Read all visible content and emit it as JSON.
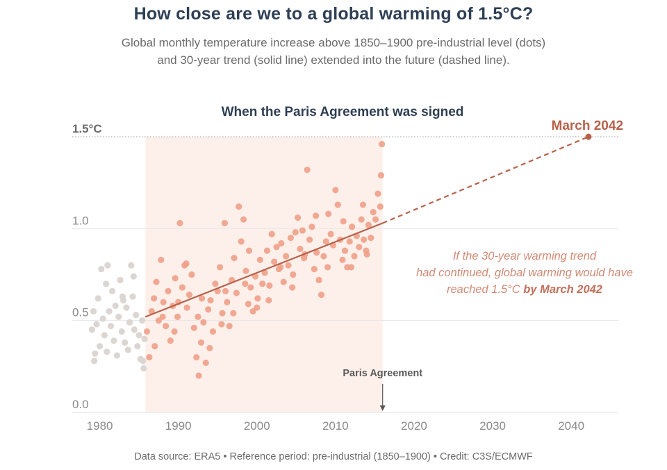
{
  "title": "How close are we to a global warming of 1.5°C?",
  "subtitle": {
    "line1": "Global monthly temperature increase above 1850–1900 pre-industrial level (dots)",
    "line2": "and 30-year trend (solid line) extended into the future (dashed line)."
  },
  "footer": "Data source: ERA5 • Reference period: pre-industrial (1850–1900) • Credit: C3S/ECMWF",
  "colors": {
    "title": "#2e3f55",
    "early_dots": "#dcd6d3",
    "trend_dots": "#f0a08a",
    "trend_line": "#b8614a",
    "highlight_band": "#fdf0ea",
    "annotation": "#d08a74"
  },
  "chart_data": {
    "type": "scatter",
    "x_ticks": [
      "1980",
      "1990",
      "2000",
      "2010",
      "2020",
      "2030",
      "2040"
    ],
    "y_ticks": [
      "0.0",
      "0.5",
      "1.0",
      "1.5°C"
    ],
    "xlim": [
      1976.5,
      2046
    ],
    "ylim": [
      0,
      1.5
    ],
    "grid": true,
    "highlight": {
      "from": 1985.8,
      "to": 2016.0,
      "label": "When the Paris Agreement was signed"
    },
    "event": {
      "x": 2016.0,
      "label": "Paris Agreement"
    },
    "trend": {
      "start": [
        1985.8,
        0.52
      ],
      "end": [
        2016.0,
        1.03
      ],
      "extension_end": [
        2042.2,
        1.5
      ],
      "target_label": "March 2042"
    },
    "annotation": {
      "line1": "If the 30-year warming trend",
      "line2": "had continued, global warming would have",
      "line3_prefix": "reached 1.5°C ",
      "line3_bold": "by March 2042"
    },
    "series": [
      {
        "period": "1979-1985",
        "points": [
          [
            1979.0,
            0.45
          ],
          [
            1979.2,
            0.55
          ],
          [
            1979.4,
            0.32
          ],
          [
            1979.6,
            0.48
          ],
          [
            1979.8,
            0.62
          ],
          [
            1980.0,
            0.36
          ],
          [
            1980.2,
            0.78
          ],
          [
            1980.4,
            0.51
          ],
          [
            1980.6,
            0.42
          ],
          [
            1980.8,
            0.7
          ],
          [
            1981.0,
            0.8
          ],
          [
            1981.2,
            0.55
          ],
          [
            1981.4,
            0.47
          ],
          [
            1981.6,
            0.66
          ],
          [
            1981.8,
            0.39
          ],
          [
            1982.0,
            0.58
          ],
          [
            1982.2,
            0.31
          ],
          [
            1982.4,
            0.52
          ],
          [
            1982.6,
            0.72
          ],
          [
            1982.8,
            0.44
          ],
          [
            1983.0,
            0.61
          ],
          [
            1983.2,
            0.38
          ],
          [
            1983.4,
            0.57
          ],
          [
            1983.6,
            0.34
          ],
          [
            1983.8,
            0.49
          ],
          [
            1984.0,
            0.8
          ],
          [
            1984.2,
            0.63
          ],
          [
            1984.4,
            0.45
          ],
          [
            1984.6,
            0.53
          ],
          [
            1984.8,
            0.36
          ],
          [
            1985.0,
            0.42
          ],
          [
            1985.2,
            0.29
          ],
          [
            1985.4,
            0.5
          ],
          [
            1985.6,
            0.24
          ],
          [
            1985.7,
            0.4
          ],
          [
            1979.3,
            0.28
          ],
          [
            1980.9,
            0.33
          ],
          [
            1982.9,
            0.63
          ],
          [
            1984.3,
            0.74
          ],
          [
            1985.5,
            0.28
          ]
        ]
      },
      {
        "period": "1986-2016",
        "points": [
          [
            1986.0,
            0.44
          ],
          [
            1986.3,
            0.3
          ],
          [
            1986.6,
            0.55
          ],
          [
            1986.9,
            0.62
          ],
          [
            1987.2,
            0.71
          ],
          [
            1987.5,
            0.5
          ],
          [
            1987.8,
            0.83
          ],
          [
            1988.1,
            0.6
          ],
          [
            1988.4,
            0.47
          ],
          [
            1988.7,
            0.66
          ],
          [
            1989.0,
            0.39
          ],
          [
            1989.3,
            0.58
          ],
          [
            1989.6,
            0.73
          ],
          [
            1989.9,
            0.52
          ],
          [
            1990.2,
            1.03
          ],
          [
            1990.5,
            0.68
          ],
          [
            1990.8,
            0.8
          ],
          [
            1991.1,
            0.57
          ],
          [
            1991.4,
            0.64
          ],
          [
            1991.7,
            0.75
          ],
          [
            1992.0,
            0.46
          ],
          [
            1992.3,
            0.3
          ],
          [
            1992.6,
            0.2
          ],
          [
            1992.9,
            0.38
          ],
          [
            1993.2,
            0.49
          ],
          [
            1993.5,
            0.27
          ],
          [
            1993.8,
            0.56
          ],
          [
            1994.1,
            0.61
          ],
          [
            1994.4,
            0.44
          ],
          [
            1994.7,
            0.7
          ],
          [
            1995.0,
            0.66
          ],
          [
            1995.3,
            0.79
          ],
          [
            1995.6,
            0.54
          ],
          [
            1995.9,
            1.03
          ],
          [
            1996.2,
            0.6
          ],
          [
            1996.5,
            0.47
          ],
          [
            1996.8,
            0.72
          ],
          [
            1997.1,
            0.84
          ],
          [
            1997.4,
            0.65
          ],
          [
            1997.7,
            1.12
          ],
          [
            1998.0,
            0.93
          ],
          [
            1998.3,
            1.05
          ],
          [
            1998.6,
            0.77
          ],
          [
            1998.9,
            0.59
          ],
          [
            1999.2,
            0.68
          ],
          [
            1999.5,
            0.55
          ],
          [
            1999.8,
            0.74
          ],
          [
            2000.1,
            0.62
          ],
          [
            2000.4,
            0.83
          ],
          [
            2000.7,
            0.7
          ],
          [
            2001.0,
            0.76
          ],
          [
            2001.3,
            0.88
          ],
          [
            2001.6,
            0.69
          ],
          [
            2001.9,
            0.97
          ],
          [
            2002.2,
            0.82
          ],
          [
            2002.5,
            0.9
          ],
          [
            2002.8,
            0.78
          ],
          [
            2003.1,
            0.92
          ],
          [
            2003.4,
            0.71
          ],
          [
            2003.7,
            0.85
          ],
          [
            2004.0,
            0.8
          ],
          [
            2004.3,
            0.95
          ],
          [
            2004.6,
            0.75
          ],
          [
            2004.9,
            0.98
          ],
          [
            2005.2,
            1.06
          ],
          [
            2005.5,
            0.89
          ],
          [
            2005.8,
            0.99
          ],
          [
            2006.1,
            0.86
          ],
          [
            2006.4,
            1.32
          ],
          [
            2006.7,
            0.94
          ],
          [
            2007.0,
            1.01
          ],
          [
            2007.3,
            0.78
          ],
          [
            2007.6,
            0.87
          ],
          [
            2007.9,
            0.72
          ],
          [
            2008.2,
            0.64
          ],
          [
            2008.5,
            0.85
          ],
          [
            2008.8,
            0.93
          ],
          [
            2009.1,
            1.08
          ],
          [
            2009.4,
            0.97
          ],
          [
            2009.7,
            0.91
          ],
          [
            2010.0,
            1.21
          ],
          [
            2010.3,
            1.13
          ],
          [
            2010.6,
            0.94
          ],
          [
            2010.9,
            0.83
          ],
          [
            2011.2,
            0.88
          ],
          [
            2011.5,
            0.79
          ],
          [
            2011.8,
            0.93
          ],
          [
            2012.1,
            1.01
          ],
          [
            2012.4,
            0.85
          ],
          [
            2012.7,
            0.96
          ],
          [
            2013.0,
            0.9
          ],
          [
            2013.3,
            1.05
          ],
          [
            2013.6,
            0.94
          ],
          [
            2013.9,
            0.88
          ],
          [
            2014.2,
            1.02
          ],
          [
            2014.5,
            0.95
          ],
          [
            2014.8,
            1.09
          ],
          [
            2015.1,
            1.05
          ],
          [
            2015.4,
            1.19
          ],
          [
            2015.7,
            1.12
          ],
          [
            2015.8,
            1.29
          ],
          [
            2015.9,
            1.46
          ],
          [
            1987.0,
            0.36
          ],
          [
            1988.0,
            0.52
          ],
          [
            1989.5,
            0.44
          ],
          [
            1990.0,
            0.6
          ],
          [
            1991.0,
            0.81
          ],
          [
            1992.5,
            0.52
          ],
          [
            1993.0,
            0.62
          ],
          [
            1994.0,
            0.35
          ],
          [
            1995.5,
            0.48
          ],
          [
            1996.0,
            0.66
          ],
          [
            1997.0,
            0.54
          ],
          [
            1998.5,
            0.7
          ],
          [
            1999.0,
            0.88
          ],
          [
            2000.0,
            0.57
          ],
          [
            2001.5,
            0.61
          ],
          [
            2003.0,
            0.79
          ],
          [
            2004.5,
            0.68
          ],
          [
            2006.0,
            0.84
          ],
          [
            2007.5,
            1.07
          ],
          [
            2009.0,
            0.79
          ],
          [
            2011.0,
            1.04
          ],
          [
            2012.0,
            0.79
          ],
          [
            2013.5,
            1.13
          ],
          [
            2014.0,
            0.86
          ]
        ]
      }
    ]
  }
}
